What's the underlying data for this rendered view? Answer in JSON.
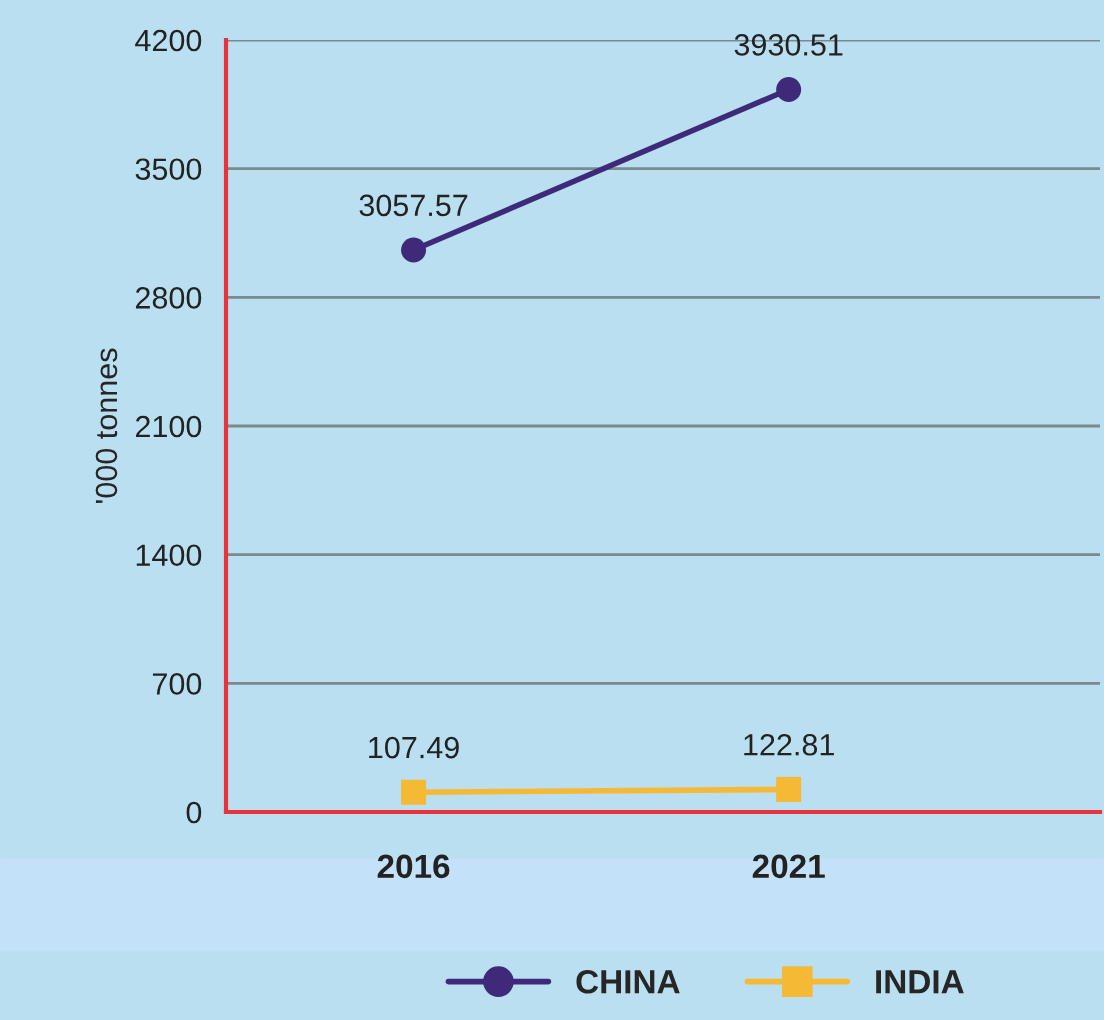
{
  "chart_data": {
    "type": "line",
    "ylabel": "'000 tonnes",
    "categories": [
      "2016",
      "2021"
    ],
    "series": [
      {
        "name": "CHINA",
        "color": "#3e2a78",
        "marker": "circle",
        "values": [
          3057.57,
          3930.51
        ]
      },
      {
        "name": "INDIA",
        "color": "#f6b935",
        "marker": "square",
        "values": [
          107.49,
          122.81
        ]
      }
    ],
    "ylim": [
      0,
      4200
    ],
    "yticks": [
      0,
      700,
      1400,
      2100,
      2800,
      3500,
      4200
    ],
    "grid": "y",
    "legend": "bottom",
    "data_labels": true
  }
}
